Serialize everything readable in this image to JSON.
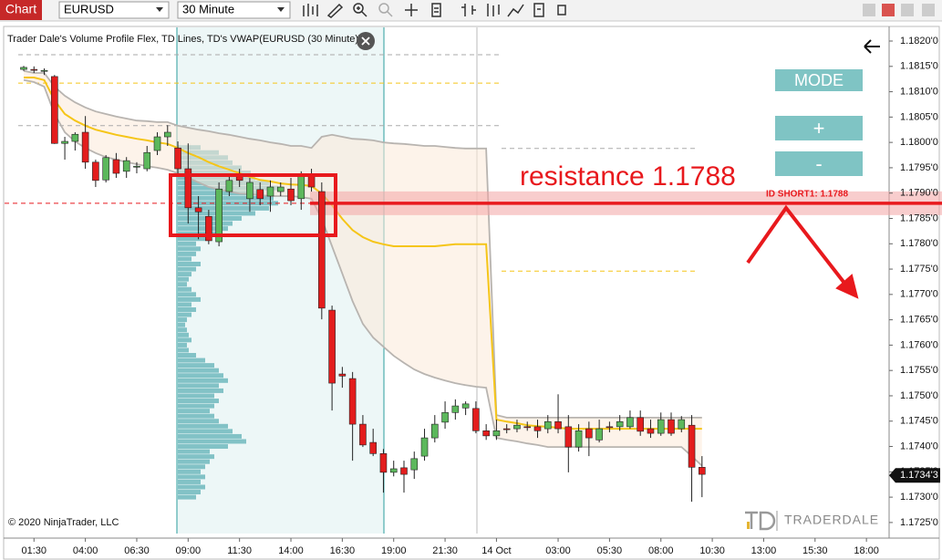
{
  "toolbar": {
    "title": "Chart",
    "instrument": "EURUSD",
    "timeframe": "30 Minute"
  },
  "panel": {
    "mode": "MODE",
    "plus": "+",
    "minus": "-"
  },
  "logo": "TRADERDALE",
  "chart_data": {
    "type": "candlestick",
    "title": "Trader Dale's Volume Profile Flex, TD Lines, TD's VWAP(EURUSD (30 Minute))",
    "copyright": "© 2020 NinjaTrader, LLC",
    "categories": [
      null,
      "01:30",
      null,
      null,
      null,
      null,
      "04:00",
      null,
      null,
      null,
      null,
      "06:30",
      null,
      null,
      null,
      null,
      "09:00",
      null,
      null,
      null,
      null,
      "11:30",
      null,
      null,
      null,
      null,
      "14:00",
      null,
      null,
      null,
      null,
      "16:30",
      null,
      null,
      null,
      null,
      "19:00",
      null,
      null,
      null,
      null,
      "21:30",
      null,
      null,
      null,
      null,
      "14 Oct",
      null,
      null,
      null,
      null,
      null,
      "03:00",
      null,
      null,
      null,
      null,
      "05:30",
      null,
      null,
      null,
      null,
      "08:00",
      null,
      null,
      null,
      null,
      "10:30",
      null,
      null,
      null,
      null,
      "13:00",
      null,
      null,
      null,
      null,
      "15:30",
      null,
      null,
      null,
      null,
      "18:00"
    ],
    "open": [
      1.18144,
      1.18144,
      1.18141,
      1.1813,
      1.17998,
      1.18002,
      1.1802,
      1.17961,
      1.17926,
      1.17966,
      1.17943,
      1.17952,
      1.17948,
      1.17984,
      1.18011,
      1.17989,
      1.17948,
      1.17871,
      1.17854,
      1.17804,
      1.17903,
      1.17934,
      1.17889,
      1.17907,
      1.17894,
      1.17903,
      1.17908,
      1.17889,
      1.17934,
      1.17903,
      1.17669,
      1.17543,
      1.17534,
      1.17444,
      1.17408,
      1.17386,
      1.17349,
      1.17358,
      1.17354,
      1.17381,
      1.17417,
      1.17448,
      1.17467,
      1.17476,
      1.17475,
      1.17431,
      1.17421,
      1.17435,
      1.17435,
      1.17439,
      1.17439,
      1.17435,
      1.17449,
      1.17439,
      1.17399,
      1.17435,
      1.17413,
      1.17439,
      1.17439,
      1.17439,
      1.17457,
      1.17435,
      1.17426,
      1.17453,
      1.17435,
      1.17442,
      1.17359,
      null,
      null,
      null,
      null,
      null,
      null,
      null,
      null,
      null,
      null,
      null,
      null,
      null,
      null,
      null,
      null
    ],
    "high": [
      1.18151,
      1.1815,
      1.18146,
      1.18133,
      1.18011,
      1.1802,
      1.18052,
      1.17966,
      1.17975,
      1.17979,
      1.17971,
      1.17961,
      1.17993,
      1.1802,
      1.18034,
      1.18002,
      1.17998,
      1.17894,
      1.17867,
      1.17921,
      1.17939,
      1.17948,
      1.1793,
      1.17921,
      1.17925,
      1.17921,
      1.1793,
      1.17943,
      1.17948,
      1.17921,
      1.17678,
      1.17557,
      1.17547,
      1.17462,
      1.17435,
      1.17395,
      1.17372,
      1.17372,
      1.1739,
      1.17435,
      1.17462,
      1.17489,
      1.17493,
      1.17489,
      1.17489,
      1.17444,
      1.17453,
      1.17444,
      1.17453,
      1.17449,
      1.17453,
      1.17462,
      1.17503,
      1.17462,
      1.17444,
      1.17449,
      1.17453,
      1.17449,
      1.17462,
      1.17471,
      1.17471,
      1.17453,
      1.17467,
      1.17467,
      1.1746,
      1.17462,
      1.17381,
      null,
      null,
      null,
      null,
      null,
      null,
      null,
      null,
      null,
      null,
      null,
      null,
      null,
      null,
      null,
      null
    ],
    "low": [
      1.18141,
      1.18137,
      1.18133,
      1.17997,
      1.17966,
      1.17984,
      1.17948,
      1.17912,
      1.17921,
      1.1793,
      1.1793,
      1.17939,
      1.17943,
      1.17975,
      1.17993,
      1.17939,
      1.1784,
      1.17809,
      1.17799,
      1.17795,
      1.17894,
      1.17912,
      1.17863,
      1.17876,
      1.17863,
      1.17894,
      1.17876,
      1.17867,
      1.17903,
      1.17651,
      1.17471,
      1.17516,
      1.17372,
      1.17399,
      1.17381,
      1.17309,
      1.17341,
      1.17309,
      1.17336,
      1.17372,
      1.17408,
      1.17435,
      1.17453,
      1.17462,
      1.17426,
      1.17413,
      1.17413,
      1.17426,
      1.17428,
      1.17431,
      1.17417,
      1.17426,
      1.17426,
      1.17349,
      1.1739,
      1.17381,
      1.17408,
      1.17428,
      1.17431,
      1.17435,
      1.17421,
      1.17417,
      1.17421,
      1.17421,
      1.17428,
      1.17291,
      1.173,
      null,
      null,
      null,
      null,
      null,
      null,
      null,
      null,
      null,
      null,
      null,
      null,
      null,
      null,
      null,
      null
    ],
    "close": [
      1.18148,
      1.18144,
      1.18142,
      1.17998,
      1.18002,
      1.18016,
      1.17961,
      1.17925,
      1.1797,
      1.17939,
      1.17964,
      1.17953,
      1.1798,
      1.18011,
      1.1802,
      1.17948,
      1.17871,
      1.17863,
      1.17806,
      1.17908,
      1.17925,
      1.17925,
      1.17921,
      1.17889,
      1.17912,
      1.17912,
      1.17885,
      1.17934,
      1.17912,
      1.17673,
      1.17525,
      1.17539,
      1.17444,
      1.17403,
      1.17386,
      1.17349,
      1.17356,
      1.17345,
      1.17376,
      1.17417,
      1.17444,
      1.17467,
      1.1748,
      1.17484,
      1.17431,
      1.17421,
      1.17431,
      1.17435,
      1.17442,
      1.17439,
      1.17431,
      1.17449,
      1.17435,
      1.17399,
      1.17431,
      1.17417,
      1.17435,
      1.17439,
      1.17449,
      1.17457,
      1.1743,
      1.17426,
      1.17453,
      1.17426,
      1.17453,
      1.17359,
      1.17345,
      null,
      null,
      null,
      null,
      null,
      null,
      null,
      null,
      null,
      null,
      null,
      null,
      null,
      null,
      null,
      null
    ],
    "up_color": "#5cb85c",
    "down_color": "#e31d1d",
    "vwap": {
      "color": "#f5c518",
      "values": [
        1.18128,
        1.18128,
        1.18123,
        1.18083,
        1.18056,
        1.18043,
        1.18033,
        1.18025,
        1.1802,
        1.18015,
        1.18011,
        1.18007,
        1.18004,
        1.18,
        1.17997,
        1.17989,
        1.17979,
        1.17971,
        1.17961,
        1.17953,
        1.17946,
        1.17939,
        1.17932,
        1.17926,
        1.17923,
        1.17919,
        1.17917,
        1.17916,
        1.17914,
        1.17899,
        1.17876,
        1.17849,
        1.17827,
        1.17813,
        1.17804,
        1.17799,
        1.17795,
        1.17795,
        1.17795,
        1.17795,
        1.17795,
        1.17797,
        1.17799,
        1.17799,
        1.17799,
        1.17799,
        1.17453,
        1.17449,
        1.17446,
        1.17442,
        1.1744,
        1.17439,
        1.17437,
        1.17435,
        1.17435,
        1.17435,
        1.17435,
        1.17435,
        1.17435,
        1.17435,
        1.17435,
        1.17435,
        1.17435,
        1.17435,
        1.17435,
        1.17435,
        1.17435,
        null,
        null,
        null,
        null,
        null,
        null,
        null,
        null,
        null,
        null,
        null,
        null,
        null,
        null,
        null,
        null
      ]
    },
    "upper_band": {
      "color": "#b8b4b0",
      "values": [
        1.18141,
        1.18137,
        1.18137,
        1.1811,
        1.18092,
        1.18079,
        1.18069,
        1.18061,
        1.18056,
        1.18051,
        1.18047,
        1.18043,
        1.18042,
        1.1804,
        1.1804,
        1.18033,
        1.18029,
        1.18025,
        1.18022,
        1.18018,
        1.18015,
        1.18011,
        1.18007,
        1.18004,
        1.18,
        1.17997,
        1.17993,
        1.17993,
        1.17989,
        1.18011,
        1.18015,
        1.18011,
        1.18007,
        1.18006,
        1.18004,
        1.18,
        1.17998,
        1.17997,
        1.17995,
        1.17993,
        1.17993,
        1.17991,
        1.17989,
        1.17988,
        1.17988,
        1.17988,
        1.17462,
        1.17457,
        1.17457,
        1.17457,
        1.17457,
        1.17457,
        1.17457,
        1.17457,
        1.17457,
        1.17457,
        1.17457,
        1.17457,
        1.17457,
        1.17457,
        1.17457,
        1.17457,
        1.17457,
        1.17457,
        1.17457,
        1.17457,
        1.17457,
        null,
        null,
        null,
        null,
        null,
        null,
        null,
        null,
        null,
        null,
        null,
        null,
        null,
        null,
        null,
        null
      ]
    },
    "lower_band": {
      "color": "#b8b4b0",
      "values": [
        1.18123,
        1.18119,
        1.1811,
        1.18056,
        1.1802,
        1.18002,
        1.17989,
        1.17979,
        1.17971,
        1.17966,
        1.17961,
        1.17957,
        1.17953,
        1.1795,
        1.17946,
        1.17939,
        1.1793,
        1.17921,
        1.17912,
        1.17907,
        1.17903,
        1.17899,
        1.17898,
        1.17896,
        1.17894,
        1.17894,
        1.17894,
        1.17892,
        1.17889,
        1.17849,
        1.17795,
        1.17741,
        1.17687,
        1.17642,
        1.17615,
        1.17597,
        1.17579,
        1.17565,
        1.17552,
        1.17543,
        1.17536,
        1.1753,
        1.17525,
        1.17521,
        1.17518,
        1.17516,
        1.17417,
        1.17413,
        1.1741,
        1.17406,
        1.17403,
        1.17399,
        1.17399,
        1.17399,
        1.17399,
        1.17399,
        1.17399,
        1.17399,
        1.17399,
        1.17399,
        1.17399,
        1.17399,
        1.17399,
        1.17399,
        1.17399,
        1.17381,
        1.17362,
        null,
        null,
        null,
        null,
        null,
        null,
        null,
        null,
        null,
        null,
        null,
        null,
        null,
        null,
        null,
        null
      ]
    },
    "volume_profile": {
      "color": "#6fb9bd",
      "prices": [
        1.173,
        1.1731,
        1.1732,
        1.1733,
        1.1734,
        1.1735,
        1.1736,
        1.1737,
        1.1738,
        1.1739,
        1.174,
        1.1741,
        1.1742,
        1.1743,
        1.1744,
        1.1745,
        1.1746,
        1.1747,
        1.1748,
        1.1749,
        1.175,
        1.1751,
        1.1752,
        1.1753,
        1.1754,
        1.1755,
        1.1756,
        1.1757,
        1.1758,
        1.1759,
        1.176,
        1.1761,
        1.1762,
        1.1763,
        1.1764,
        1.1765,
        1.1766,
        1.1767,
        1.1768,
        1.1769,
        1.177,
        1.1771,
        1.1772,
        1.1773,
        1.1774,
        1.1775,
        1.1776,
        1.1777,
        1.1778,
        1.1779,
        1.178,
        1.1781,
        1.1782,
        1.1783,
        1.1784,
        1.1785,
        1.1786,
        1.1787,
        1.1788,
        1.1789,
        1.179,
        1.1791,
        1.1792,
        1.1793,
        1.1794,
        1.1795,
        1.1796,
        1.1797,
        1.1798,
        1.1799
      ],
      "values": [
        20,
        25,
        30,
        25,
        30,
        25,
        30,
        35,
        40,
        35,
        55,
        75,
        70,
        60,
        55,
        45,
        40,
        35,
        40,
        45,
        40,
        50,
        45,
        55,
        50,
        45,
        40,
        30,
        20,
        12,
        10,
        15,
        12,
        10,
        8,
        10,
        15,
        20,
        15,
        25,
        20,
        15,
        10,
        12,
        15,
        20,
        25,
        15,
        20,
        25,
        20,
        30,
        45,
        55,
        60,
        70,
        85,
        100,
        110,
        105,
        95,
        110,
        100,
        85,
        80,
        70,
        60,
        55,
        45,
        25
      ]
    },
    "levels": [
      {
        "value": 1.18173,
        "color": "#aaaaaa"
      },
      {
        "value": 1.18033,
        "color": "#aaaaaa"
      },
      {
        "value": 1.17988,
        "color": "#aaaaaa"
      },
      {
        "value": 1.18117,
        "color": "#f5c518"
      },
      {
        "value": 1.17746,
        "color": "#f5c518"
      },
      {
        "value": 1.1788,
        "color": "#e8191d"
      }
    ],
    "resistance": {
      "value": 1.1788,
      "label": "ID SHORT1: 1.1788",
      "annotation": "resistance 1.1788",
      "color": "#e8191d"
    },
    "last_price": {
      "value": 1.17343,
      "label": "1.1734'3"
    },
    "ylim": [
      1.1723,
      1.18227
    ],
    "yticks": [
      {
        "value": 1.1725,
        "label": "1.1725'0"
      },
      {
        "value": 1.173,
        "label": "1.1730'0"
      },
      {
        "value": 1.1735,
        "label": "1.1735'0"
      },
      {
        "value": 1.174,
        "label": "1.1740'0"
      },
      {
        "value": 1.1745,
        "label": "1.1745'0"
      },
      {
        "value": 1.175,
        "label": "1.1750'0"
      },
      {
        "value": 1.1755,
        "label": "1.1755'0"
      },
      {
        "value": 1.176,
        "label": "1.1760'0"
      },
      {
        "value": 1.1765,
        "label": "1.1765'0"
      },
      {
        "value": 1.177,
        "label": "1.1770'0"
      },
      {
        "value": 1.1775,
        "label": "1.1775'0"
      },
      {
        "value": 1.178,
        "label": "1.1780'0"
      },
      {
        "value": 1.1785,
        "label": "1.1785'0"
      },
      {
        "value": 1.179,
        "label": "1.1790'0"
      },
      {
        "value": 1.1795,
        "label": "1.1795'0"
      },
      {
        "value": 1.18,
        "label": "1.1800'0"
      },
      {
        "value": 1.1805,
        "label": "1.1805'0"
      },
      {
        "value": 1.181,
        "label": "1.1810'0"
      },
      {
        "value": 1.1815,
        "label": "1.1815'0"
      },
      {
        "value": 1.182,
        "label": "1.1820'0"
      }
    ]
  }
}
